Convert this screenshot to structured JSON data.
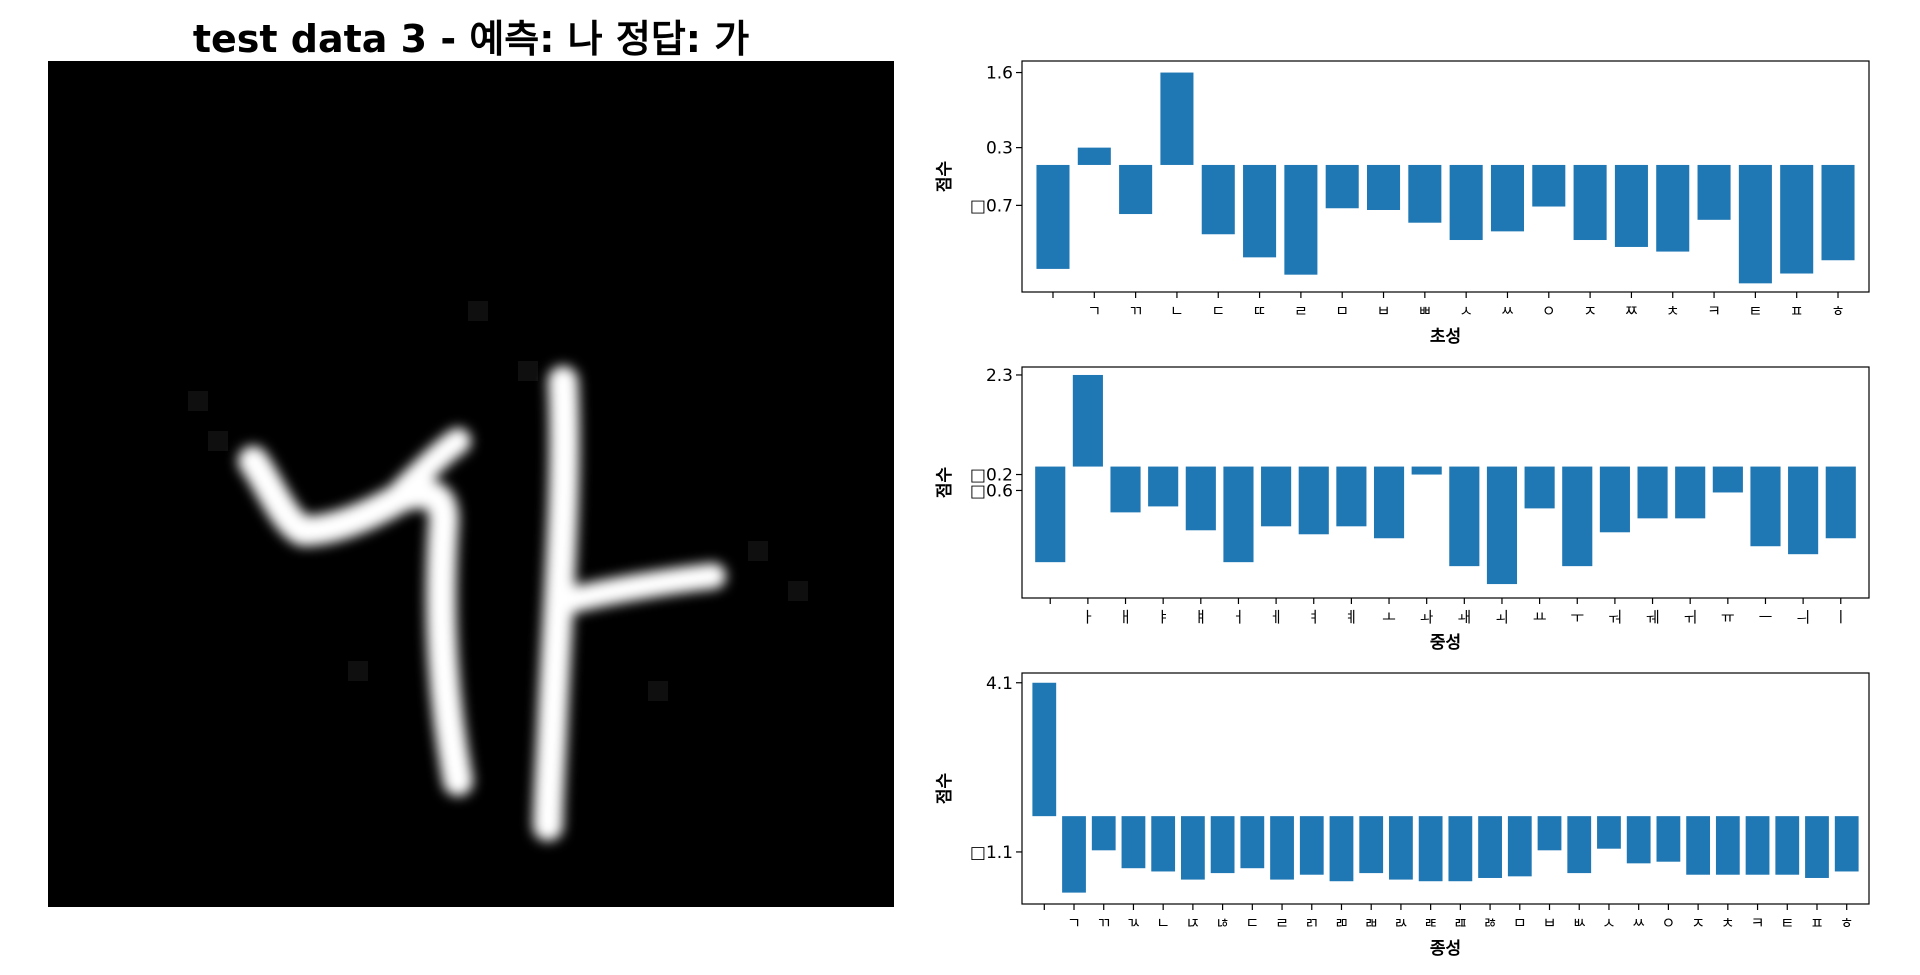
{
  "figure": {
    "title": "test data 3 - 예측: 나  정답: 가"
  },
  "colors": {
    "bar": "#1f77b4",
    "axes": "#000000",
    "image_background": "#000000",
    "stroke": "#ffffff"
  },
  "chart_data": [
    {
      "type": "bar",
      "xlabel": "초성",
      "ylabel": "점수",
      "ytick_labels": [
        "1.6",
        "0.3",
        "□0.7"
      ],
      "yticks": [
        1.6,
        0.3,
        -0.7
      ],
      "ylim": [
        -2.2,
        1.8
      ],
      "categories": [
        "",
        "ㄱ",
        "ㄲ",
        "ㄴ",
        "ㄷ",
        "ㄸ",
        "ㄹ",
        "ㅁ",
        "ㅂ",
        "ㅃ",
        "ㅅ",
        "ㅆ",
        "ㅇ",
        "ㅈ",
        "ㅉ",
        "ㅊ",
        "ㅋ",
        "ㅌ",
        "ㅍ",
        "ㅎ"
      ],
      "values": [
        -1.8,
        0.3,
        -0.85,
        1.6,
        -1.2,
        -1.6,
        -1.9,
        -0.75,
        -0.78,
        -1.0,
        -1.3,
        -1.15,
        -0.72,
        -1.3,
        -1.42,
        -1.5,
        -0.95,
        -2.05,
        -1.88,
        -1.65
      ]
    },
    {
      "type": "bar",
      "xlabel": "중성",
      "ylabel": "점수",
      "ytick_labels": [
        "2.3",
        "□0.2",
        "□0.6"
      ],
      "yticks": [
        2.3,
        -0.2,
        -0.6
      ],
      "ylim": [
        -3.3,
        2.5
      ],
      "categories": [
        "",
        "ㅏ",
        "ㅐ",
        "ㅑ",
        "ㅒ",
        "ㅓ",
        "ㅔ",
        "ㅕ",
        "ㅖ",
        "ㅗ",
        "ㅘ",
        "ㅙ",
        "ㅚ",
        "ㅛ",
        "ㅜ",
        "ㅝ",
        "ㅞ",
        "ㅟ",
        "ㅠ",
        "ㅡ",
        "ㅢ",
        "ㅣ"
      ],
      "values": [
        -2.4,
        2.3,
        -1.15,
        -1.0,
        -1.6,
        -2.4,
        -1.5,
        -1.7,
        -1.5,
        -1.8,
        -0.2,
        -2.5,
        -2.95,
        -1.05,
        -2.5,
        -1.65,
        -1.3,
        -1.3,
        -0.65,
        -2.0,
        -2.2,
        -1.8
      ]
    },
    {
      "type": "bar",
      "xlabel": "종성",
      "ylabel": "점수",
      "ytick_labels": [
        "4.1",
        "□1.1"
      ],
      "yticks": [
        4.1,
        -1.1
      ],
      "ylim": [
        -2.7,
        4.4
      ],
      "categories": [
        "",
        "ㄱ",
        "ㄲ",
        "ㄳ",
        "ㄴ",
        "ㄵ",
        "ㄶ",
        "ㄷ",
        "ㄹ",
        "ㄺ",
        "ㄻ",
        "ㄼ",
        "ㄽ",
        "ㄾ",
        "ㄿ",
        "ㅀ",
        "ㅁ",
        "ㅂ",
        "ㅄ",
        "ㅅ",
        "ㅆ",
        "ㅇ",
        "ㅈ",
        "ㅊ",
        "ㅋ",
        "ㅌ",
        "ㅍ",
        "ㅎ"
      ],
      "values": [
        4.1,
        -2.35,
        -1.05,
        -1.6,
        -1.7,
        -1.95,
        -1.75,
        -1.6,
        -1.95,
        -1.8,
        -2.0,
        -1.75,
        -1.95,
        -2.0,
        -2.0,
        -1.9,
        -1.85,
        -1.05,
        -1.75,
        -1.0,
        -1.45,
        -1.4,
        -1.8,
        -1.8,
        -1.8,
        -1.8,
        -1.9,
        -1.7
      ]
    }
  ]
}
